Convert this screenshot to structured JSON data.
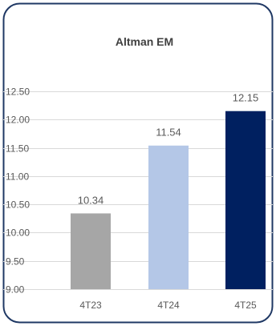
{
  "chart_data": {
    "type": "bar",
    "title": "Altman EM",
    "categories": [
      "4T23",
      "4T24",
      "4T25"
    ],
    "values": [
      10.34,
      11.54,
      12.15
    ],
    "value_labels": [
      "10.34",
      "11.54",
      "12.15"
    ],
    "ylim": [
      9.0,
      12.5
    ],
    "yticks": [
      9.0,
      9.5,
      10.0,
      10.5,
      11.0,
      11.5,
      12.0,
      12.5
    ],
    "ytick_labels": [
      "9.00",
      "9.50",
      "10.00",
      "10.50",
      "11.00",
      "11.50",
      "12.00",
      "12.50"
    ],
    "bar_colors": [
      "#A6A6A6",
      "#B4C7E7",
      "#002060"
    ],
    "grid": true,
    "legend": "none"
  },
  "colors": {
    "frame": "#1F3864",
    "grid": "#D9D9D9",
    "text": "#595959",
    "title": "#404040"
  }
}
